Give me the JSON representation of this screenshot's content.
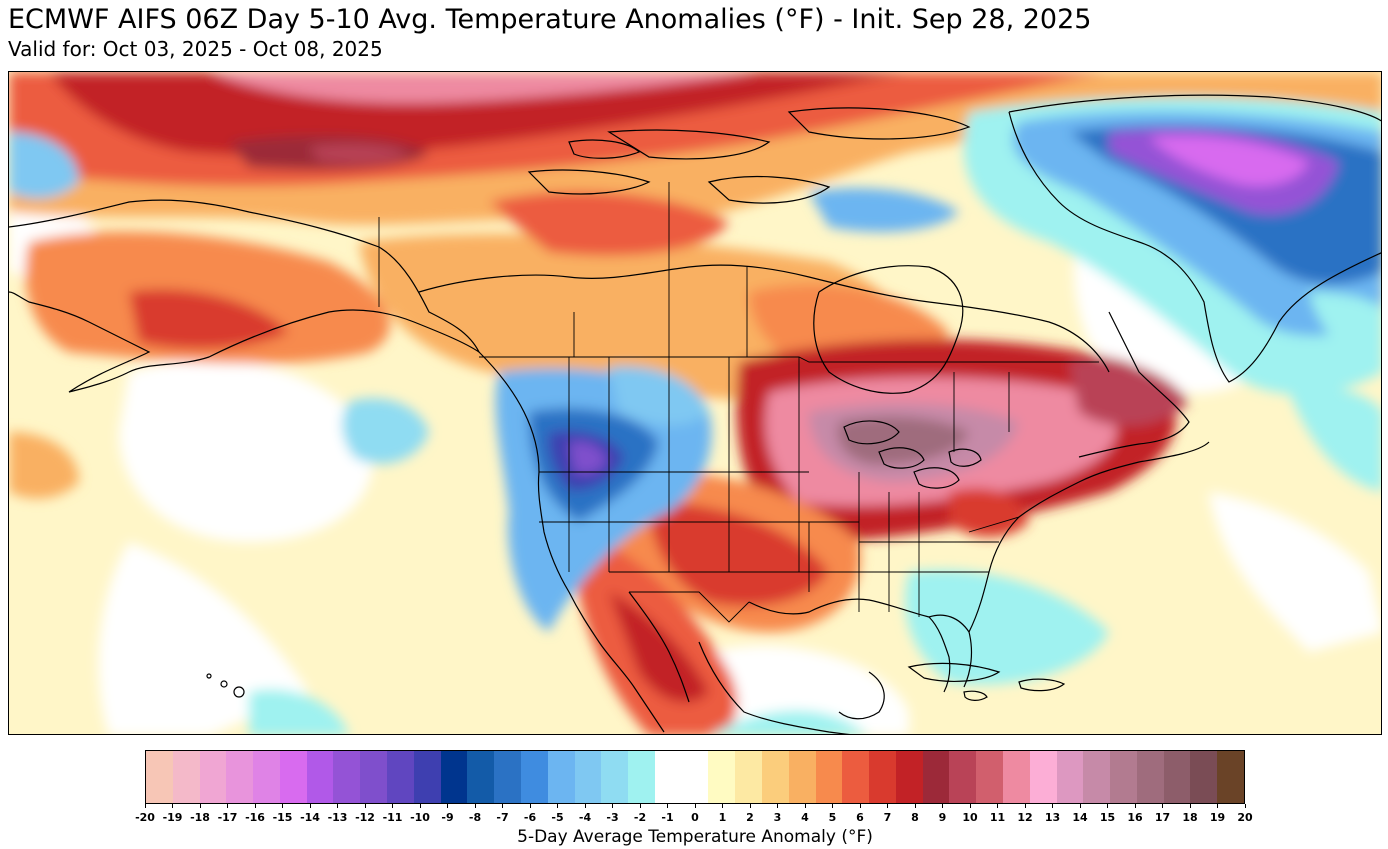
{
  "title": "ECMWF AIFS 06Z Day 5-10 Avg. Temperature Anomalies (°F) - Init. Sep 28, 2025",
  "subtitle": "Valid for: Oct 03, 2025 - Oct 08, 2025",
  "map": {
    "region": "North America",
    "variable": "5-day average temperature anomaly",
    "units": "°F",
    "anomaly_areas": [
      {
        "name": "Arctic Ocean north of Alaska/Canada",
        "anomaly_f": 10
      },
      {
        "name": "Northwestern Greenland",
        "anomaly_f": -12
      },
      {
        "name": "Western United States / Great Basin",
        "anomaly_f": -9
      },
      {
        "name": "Upper Midwest / Great Lakes",
        "anomaly_f": 17
      },
      {
        "name": "Quebec / eastern Canada",
        "anomaly_f": 13
      },
      {
        "name": "Central Canada",
        "anomaly_f": 5
      },
      {
        "name": "Alaska",
        "anomaly_f": 6
      },
      {
        "name": "Gulf of Mexico / Caribbean",
        "anomaly_f": -2
      },
      {
        "name": "Northeast Pacific",
        "anomaly_f": -3
      }
    ]
  },
  "colorbar": {
    "label": "5-Day Average Temperature Anomaly (°F)",
    "ticks": [
      "-20",
      "-19",
      "-18",
      "-17",
      "-16",
      "-15",
      "-14",
      "-13",
      "-12",
      "-11",
      "-10",
      "-9",
      "-8",
      "-7",
      "-6",
      "-5",
      "-4",
      "-3",
      "-2",
      "-1",
      "0",
      "1",
      "2",
      "3",
      "4",
      "5",
      "6",
      "7",
      "8",
      "9",
      "10",
      "11",
      "12",
      "13",
      "14",
      "15",
      "16",
      "17",
      "18",
      "19",
      "20"
    ],
    "colors": [
      "#f7c6b6",
      "#f4b9c9",
      "#f0a6d3",
      "#e894dc",
      "#df83e6",
      "#d86bef",
      "#b159e8",
      "#9453d6",
      "#7f4fcc",
      "#6046c0",
      "#3e3fb0",
      "#00358e",
      "#135ba8",
      "#2b72c4",
      "#3f8ce0",
      "#6cb5f1",
      "#7fc8f2",
      "#8fdcf2",
      "#9ff2f0",
      "#ffffff",
      "#ffffff",
      "#fffbc2",
      "#fde9a3",
      "#fbcd7c",
      "#f9b062",
      "#f78a4d",
      "#ec5c3f",
      "#d93a2e",
      "#c22226",
      "#9c2939",
      "#b94357",
      "#d15f6d",
      "#ee8aa1",
      "#fcaed6",
      "#dd98c1",
      "#c68aa8",
      "#b27b90",
      "#9f6c7d",
      "#8d5d6a",
      "#7a4c55",
      "#6a4327"
    ]
  }
}
